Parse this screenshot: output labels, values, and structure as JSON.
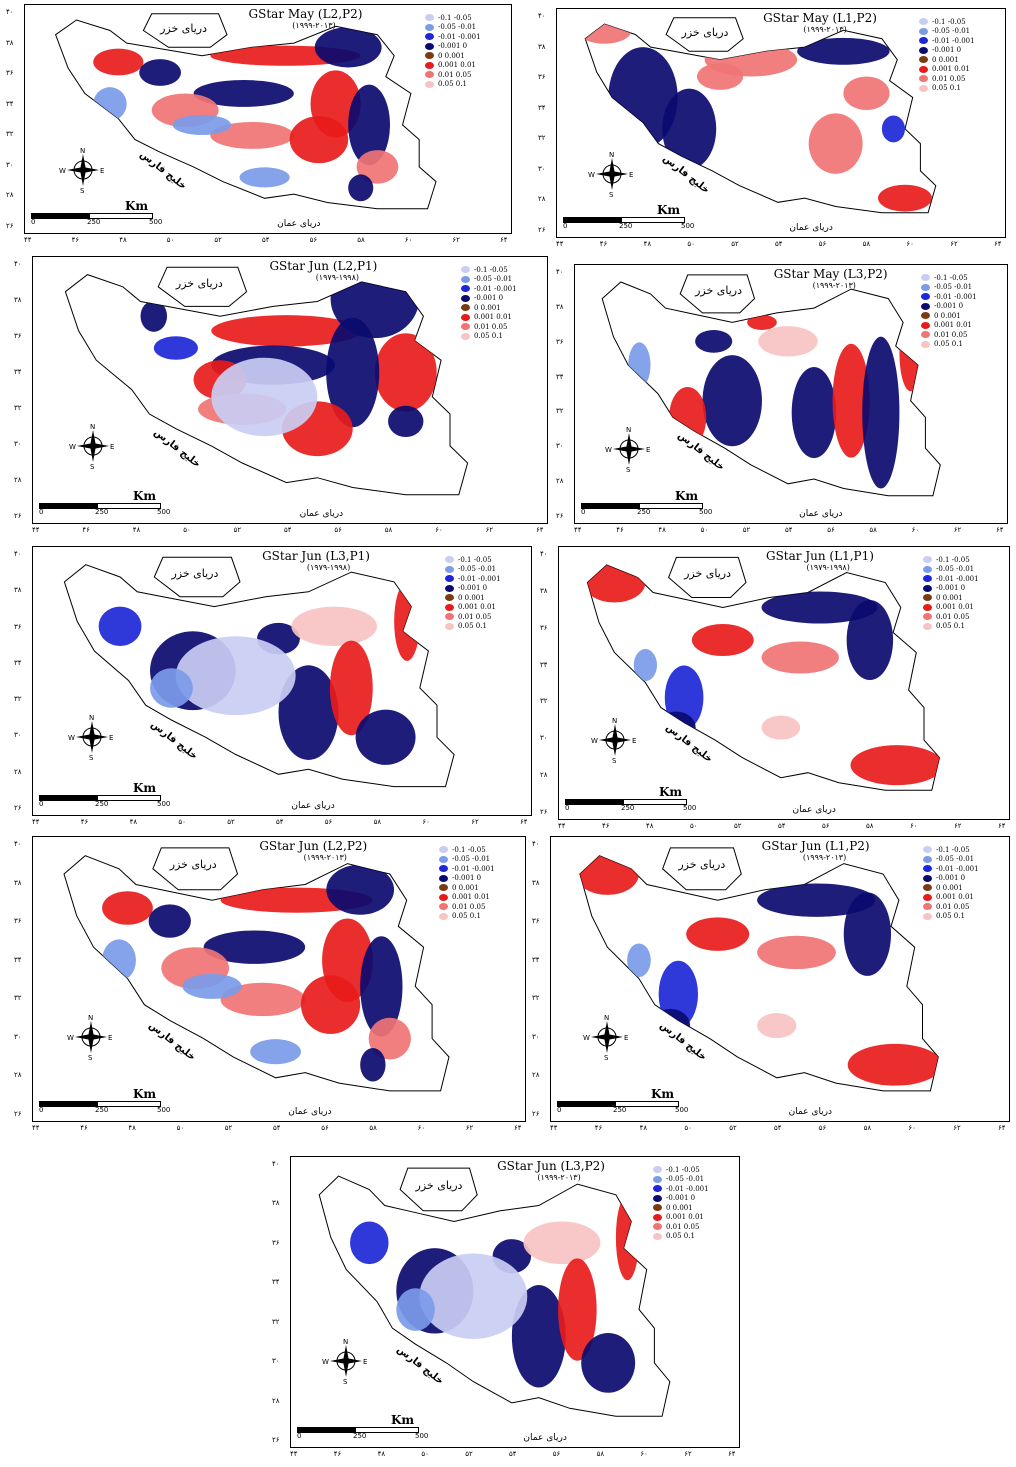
{
  "legend_items": [
    {
      "label": "-0.1  -0.05",
      "color": "#c9cdf3"
    },
    {
      "label": "-0.05  -0.01",
      "color": "#7b9be8"
    },
    {
      "label": "-0.01  -0.001",
      "color": "#1d27d6"
    },
    {
      "label": "-0.001  0",
      "color": "#0b0b6f"
    },
    {
      "label": "0  0.001",
      "color": "#7a3b12"
    },
    {
      "label": "0.001  0.01",
      "color": "#e81b1b"
    },
    {
      "label": "0.01  0.05",
      "color": "#f07474"
    },
    {
      "label": "0.05  0.1",
      "color": "#f7c3c3"
    }
  ],
  "map_labels": {
    "caspian": "دریای خزر",
    "persian_gulf": "خلیج فارس",
    "oman_sea": "دریای عمان",
    "km": "Km",
    "scale": [
      "0",
      "250",
      "500"
    ],
    "compass": {
      "n": "N",
      "s": "S",
      "e": "E",
      "w": "W"
    }
  },
  "x_ticks": [
    "۴۴",
    "۴۶",
    "۴۸",
    "۵۰",
    "۵۲",
    "۵۴",
    "۵۶",
    "۵۸",
    "۶۰",
    "۶۲",
    "۶۴"
  ],
  "y_ticks": [
    "۴۰",
    "۳۸",
    "۳۶",
    "۳۴",
    "۳۲",
    "۳۰",
    "۲۸",
    "۲۶"
  ],
  "panels": [
    {
      "title": "GStar May (L2,P2)",
      "years": "(۱۹۹۹-۲۰۱۳)",
      "pattern": "p1"
    },
    {
      "title": "GStar May (L1,P2)",
      "years": "(۱۹۹۹-۲۰۱۳)",
      "pattern": "p2"
    },
    {
      "title": "GStar Jun (L2,P1)",
      "years": "(۱۹۷۹-۱۹۹۸)",
      "pattern": "p3"
    },
    {
      "title": "GStar May (L3,P2)",
      "years": "(۱۹۹۹-۲۰۱۳)",
      "pattern": "p4"
    },
    {
      "title": "GStar Jun (L3,P1)",
      "years": "(۱۹۷۹-۱۹۹۸)",
      "pattern": "p5"
    },
    {
      "title": "GStar Jun (L1,P1)",
      "years": "(۱۹۷۹-۱۹۹۸)",
      "pattern": "p6"
    },
    {
      "title": "GStar Jun (L2,P2)",
      "years": "(۱۹۹۹-۲۰۱۳)",
      "pattern": "p1"
    },
    {
      "title": "GStar Jun (L1,P2)",
      "years": "(۱۹۹۹-۲۰۱۳)",
      "pattern": "p6"
    },
    {
      "title": "GStar Jun (L3,P2)",
      "years": "(۱۹۹۹-۲۰۱۳)",
      "pattern": "p5"
    }
  ]
}
